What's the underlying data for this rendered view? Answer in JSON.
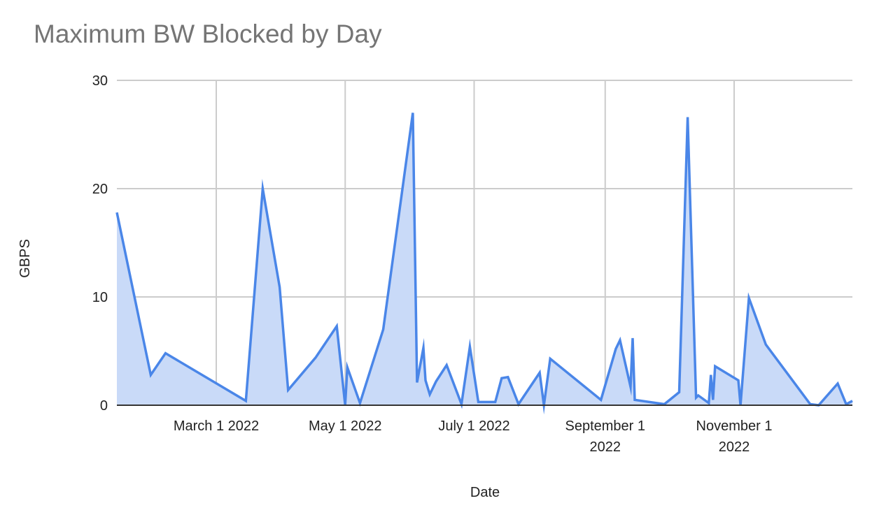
{
  "chart_data": {
    "type": "area",
    "title": "Maximum BW Blocked by Day",
    "xlabel": "Date",
    "ylabel": "GBPS",
    "ylim": [
      0,
      30
    ],
    "yticks": [
      0,
      10,
      20,
      30
    ],
    "xticks": [
      {
        "label": [
          "March 1 2022"
        ],
        "date": "2022-03-01"
      },
      {
        "label": [
          "May 1 2022"
        ],
        "date": "2022-05-01"
      },
      {
        "label": [
          "July 1 2022"
        ],
        "date": "2022-07-01"
      },
      {
        "label": [
          "September 1",
          "2022"
        ],
        "date": "2022-09-01"
      },
      {
        "label": [
          "November 1",
          "2022"
        ],
        "date": "2022-11-01"
      }
    ],
    "xrange": [
      "2022-01-13",
      "2022-12-30"
    ],
    "grid": true,
    "legend": "none",
    "series": [
      {
        "name": "GBPS",
        "color": "#4a86e8",
        "fill": "#c9daf8",
        "points": [
          [
            "2022-01-13",
            17.8
          ],
          [
            "2022-01-29",
            2.8
          ],
          [
            "2022-02-05",
            4.8
          ],
          [
            "2022-03-15",
            0.4
          ],
          [
            "2022-03-23",
            20.0
          ],
          [
            "2022-03-31",
            10.9
          ],
          [
            "2022-04-04",
            1.4
          ],
          [
            "2022-04-17",
            4.4
          ],
          [
            "2022-04-27",
            7.3
          ],
          [
            "2022-05-01",
            0.0
          ],
          [
            "2022-05-02",
            3.5
          ],
          [
            "2022-05-08",
            0.2
          ],
          [
            "2022-05-19",
            7.0
          ],
          [
            "2022-06-02",
            27.0
          ],
          [
            "2022-06-04",
            2.1
          ],
          [
            "2022-06-05",
            3.2
          ],
          [
            "2022-06-07",
            5.3
          ],
          [
            "2022-06-08",
            2.3
          ],
          [
            "2022-06-10",
            1.0
          ],
          [
            "2022-06-13",
            2.2
          ],
          [
            "2022-06-18",
            3.7
          ],
          [
            "2022-06-25",
            0.1
          ],
          [
            "2022-06-29",
            5.4
          ],
          [
            "2022-07-03",
            0.3
          ],
          [
            "2022-07-11",
            0.3
          ],
          [
            "2022-07-14",
            2.5
          ],
          [
            "2022-07-17",
            2.6
          ],
          [
            "2022-07-22",
            0.1
          ],
          [
            "2022-08-01",
            3.0
          ],
          [
            "2022-08-03",
            0.0
          ],
          [
            "2022-08-06",
            4.3
          ],
          [
            "2022-08-30",
            0.5
          ],
          [
            "2022-09-06",
            5.2
          ],
          [
            "2022-09-08",
            6.0
          ],
          [
            "2022-09-13",
            1.7
          ],
          [
            "2022-09-14",
            6.2
          ],
          [
            "2022-09-15",
            0.5
          ],
          [
            "2022-09-29",
            0.1
          ],
          [
            "2022-10-06",
            1.2
          ],
          [
            "2022-10-10",
            26.6
          ],
          [
            "2022-10-14",
            0.7
          ],
          [
            "2022-10-15",
            0.9
          ],
          [
            "2022-10-20",
            0.2
          ],
          [
            "2022-10-21",
            2.8
          ],
          [
            "2022-10-22",
            0.5
          ],
          [
            "2022-10-23",
            3.6
          ],
          [
            "2022-11-03",
            2.3
          ],
          [
            "2022-11-04",
            0.0
          ],
          [
            "2022-11-08",
            9.9
          ],
          [
            "2022-11-16",
            5.6
          ],
          [
            "2022-12-07",
            0.1
          ],
          [
            "2022-12-11",
            0.0
          ],
          [
            "2022-12-20",
            2.0
          ],
          [
            "2022-12-24",
            0.1
          ],
          [
            "2022-12-27",
            0.4
          ]
        ]
      }
    ]
  }
}
